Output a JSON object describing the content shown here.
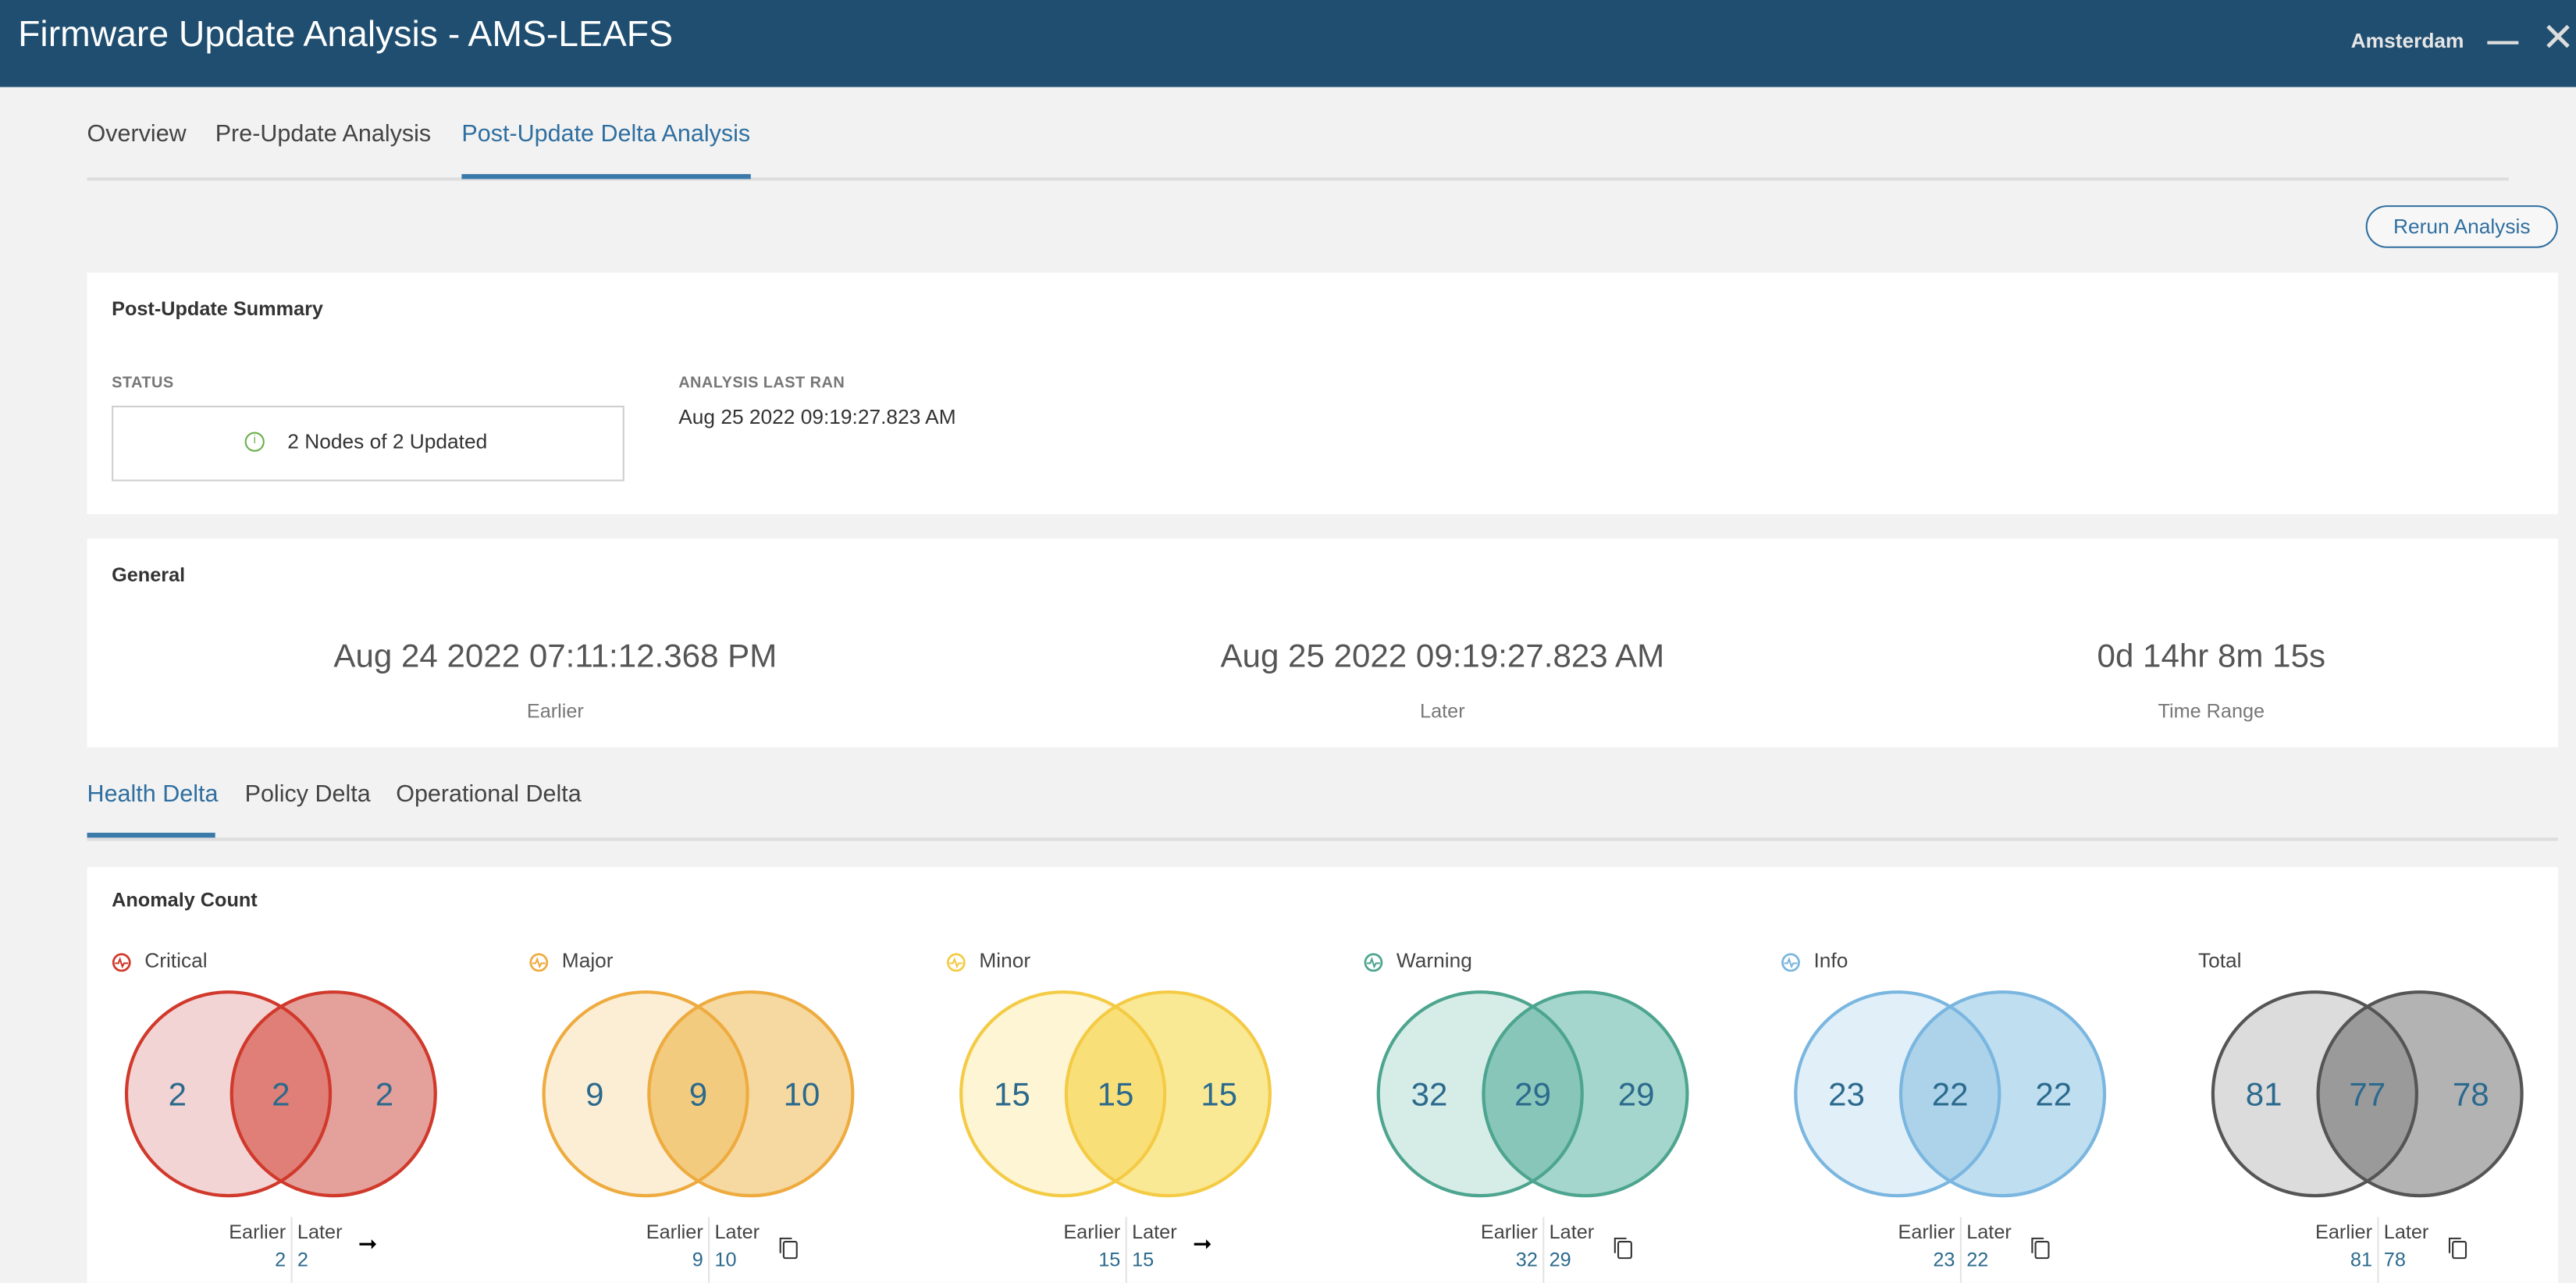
{
  "header": {
    "title": "Firmware Update Analysis - AMS-LEAFS",
    "site": "Amsterdam"
  },
  "tabs": [
    {
      "label": "Overview"
    },
    {
      "label": "Pre-Update Analysis"
    },
    {
      "label": "Post-Update Delta Analysis",
      "active": true
    }
  ],
  "rerun_label": "Rerun Analysis",
  "summary": {
    "title": "Post-Update Summary",
    "status_label": "STATUS",
    "status_value": "2 Nodes of 2 Updated",
    "status_color": "#6ab04c",
    "last_ran_label": "ANALYSIS LAST RAN",
    "last_ran_value": "Aug 25 2022 09:19:27.823 AM"
  },
  "general": {
    "title": "General",
    "items": [
      {
        "value": "Aug 24 2022 07:11:12.368 PM",
        "label": "Earlier"
      },
      {
        "value": "Aug 25 2022 09:19:27.823 AM",
        "label": "Later"
      },
      {
        "value": "0d 14hr 8m 15s",
        "label": "Time Range"
      }
    ]
  },
  "subtabs": [
    {
      "label": "Health Delta",
      "active": true
    },
    {
      "label": "Policy Delta"
    },
    {
      "label": "Operational Delta"
    }
  ],
  "anomaly": {
    "title": "Anomaly Count",
    "earlier_label": "Earlier",
    "later_label": "Later",
    "groups": [
      {
        "name": "Critical",
        "icon": "pulse-icon",
        "earlier_only": "2",
        "both": "2",
        "later_only": "2",
        "earlier": "2",
        "later": "2",
        "action_icon": "arrow-right-icon",
        "stroke": "#d0392b",
        "fill_left": "#f3d4d4",
        "fill_right": "#e4a09a",
        "fill_mid": "#df7f77"
      },
      {
        "name": "Major",
        "icon": "pulse-icon",
        "earlier_only": "9",
        "both": "9",
        "later_only": "10",
        "earlier": "9",
        "later": "10",
        "action_icon": "copy-icon",
        "stroke": "#eeab3f",
        "fill_left": "#fbeed5",
        "fill_right": "#f6d9a0",
        "fill_mid": "#f3cb7f"
      },
      {
        "name": "Minor",
        "icon": "pulse-icon",
        "earlier_only": "15",
        "both": "15",
        "later_only": "15",
        "earlier": "15",
        "later": "15",
        "action_icon": "arrow-right-icon",
        "stroke": "#f4cb45",
        "fill_left": "#fdf5d3",
        "fill_right": "#fae994",
        "fill_mid": "#f9df78"
      },
      {
        "name": "Warning",
        "icon": "pulse-icon",
        "earlier_only": "32",
        "both": "29",
        "later_only": "29",
        "earlier": "32",
        "later": "29",
        "action_icon": "copy-icon",
        "stroke": "#4da58f",
        "fill_left": "#d6ece7",
        "fill_right": "#a4d6cd",
        "fill_mid": "#88c6ba"
      },
      {
        "name": "Info",
        "icon": "pulse-icon",
        "earlier_only": "23",
        "both": "22",
        "later_only": "22",
        "earlier": "23",
        "later": "22",
        "action_icon": "copy-icon",
        "stroke": "#7ab6df",
        "fill_left": "#e1eff9",
        "fill_right": "#bfdef0",
        "fill_mid": "#acd3ea"
      },
      {
        "name": "Total",
        "icon": "",
        "earlier_only": "81",
        "both": "77",
        "later_only": "78",
        "earlier": "81",
        "later": "78",
        "action_icon": "copy-icon",
        "stroke": "#555555",
        "fill_left": "#dcdcdc",
        "fill_right": "#b3b3b4",
        "fill_mid": "#9a9a9b"
      }
    ]
  }
}
